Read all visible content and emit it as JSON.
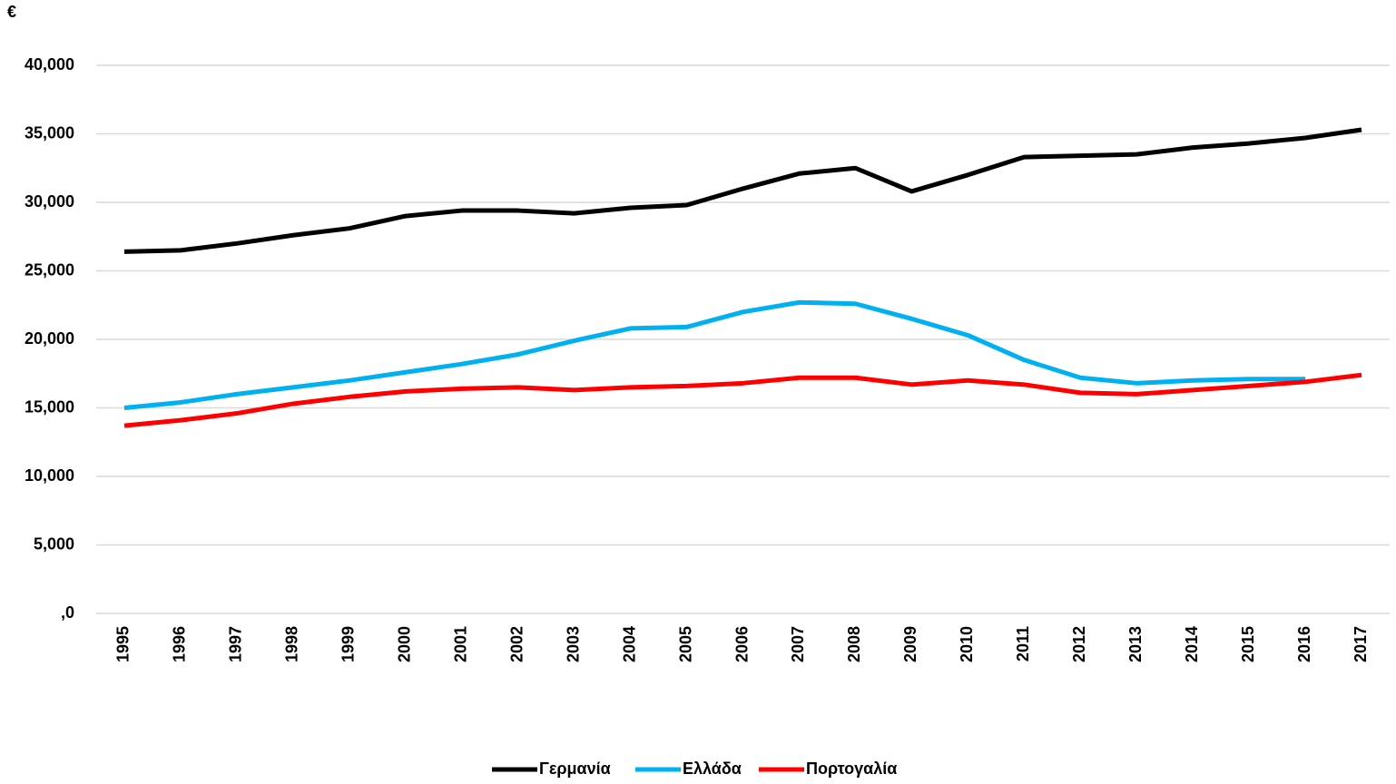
{
  "chart_data": {
    "type": "line",
    "y_label": "€",
    "categories": [
      1995,
      1996,
      1997,
      1998,
      1999,
      2000,
      2001,
      2002,
      2003,
      2004,
      2005,
      2006,
      2007,
      2008,
      2009,
      2010,
      2011,
      2012,
      2013,
      2014,
      2015,
      2016,
      2017
    ],
    "series": [
      {
        "name": "Γερμανία",
        "color": "#000000",
        "values": [
          26400,
          26500,
          27000,
          27600,
          28100,
          29000,
          29400,
          29400,
          29200,
          29600,
          29800,
          31000,
          32100,
          32500,
          30800,
          32000,
          33300,
          33400,
          33500,
          34000,
          34300,
          34700,
          35300
        ]
      },
      {
        "name": "Ελλάδα",
        "color": "#00b0f0",
        "values": [
          15000,
          15400,
          16000,
          16500,
          17000,
          17600,
          18200,
          18900,
          19900,
          20800,
          20900,
          22000,
          22700,
          22600,
          21500,
          20300,
          18500,
          17200,
          16800,
          17000,
          17100,
          17100,
          null
        ]
      },
      {
        "name": "Πορτογαλία",
        "color": "#ff0000",
        "values": [
          13700,
          14100,
          14600,
          15300,
          15800,
          16200,
          16400,
          16500,
          16300,
          16500,
          16600,
          16800,
          17200,
          17200,
          16700,
          17000,
          16700,
          16100,
          16000,
          16300,
          16600,
          16900,
          17400
        ]
      }
    ],
    "ylim": [
      0,
      40000
    ],
    "yticks": [
      {
        "value": 0,
        "label": ",0"
      },
      {
        "value": 5000,
        "label": "5,000"
      },
      {
        "value": 10000,
        "label": "10,000"
      },
      {
        "value": 15000,
        "label": "15,000"
      },
      {
        "value": 20000,
        "label": "20,000"
      },
      {
        "value": 25000,
        "label": "25,000"
      },
      {
        "value": 30000,
        "label": "30,000"
      },
      {
        "value": 35000,
        "label": "35,000"
      },
      {
        "value": 40000,
        "label": "40,000"
      }
    ],
    "grid": true,
    "legend": "bottom"
  }
}
